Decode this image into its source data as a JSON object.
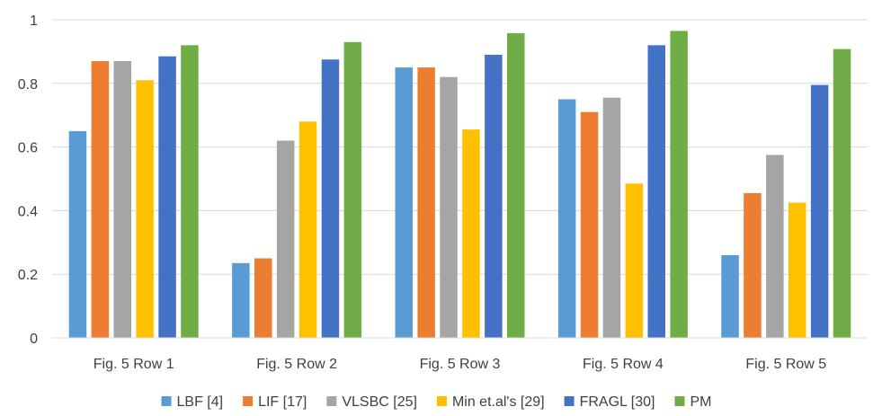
{
  "chart_data": {
    "type": "bar",
    "categories": [
      "Fig. 5 Row 1",
      "Fig. 5 Row 2",
      "Fig. 5 Row 3",
      "Fig. 5 Row 4",
      "Fig. 5 Row 5"
    ],
    "ylim": [
      0,
      1
    ],
    "yticks": [
      "0",
      "0.2",
      "0.4",
      "0.6",
      "0.8",
      "1"
    ],
    "ytick_values": [
      0,
      0.2,
      0.4,
      0.6,
      0.8,
      1
    ],
    "grid": true,
    "legend_position": "bottom",
    "series": [
      {
        "name": "LBF [4]",
        "color": "#5b9bd5",
        "values": [
          0.65,
          0.235,
          0.85,
          0.75,
          0.26
        ]
      },
      {
        "name": "LIF [17]",
        "color": "#ed7d31",
        "values": [
          0.87,
          0.25,
          0.85,
          0.71,
          0.455
        ]
      },
      {
        "name": "VLSBC [25]",
        "color": "#a5a5a5",
        "values": [
          0.87,
          0.62,
          0.82,
          0.755,
          0.575
        ]
      },
      {
        "name": "Min et.al's [29]",
        "color": "#ffc000",
        "values": [
          0.81,
          0.68,
          0.655,
          0.485,
          0.425
        ]
      },
      {
        "name": "FRAGL [30]",
        "color": "#4472c4",
        "values": [
          0.885,
          0.875,
          0.89,
          0.92,
          0.795
        ]
      },
      {
        "name": "PM",
        "color": "#70ad47",
        "values": [
          0.92,
          0.93,
          0.958,
          0.965,
          0.908
        ]
      }
    ]
  }
}
